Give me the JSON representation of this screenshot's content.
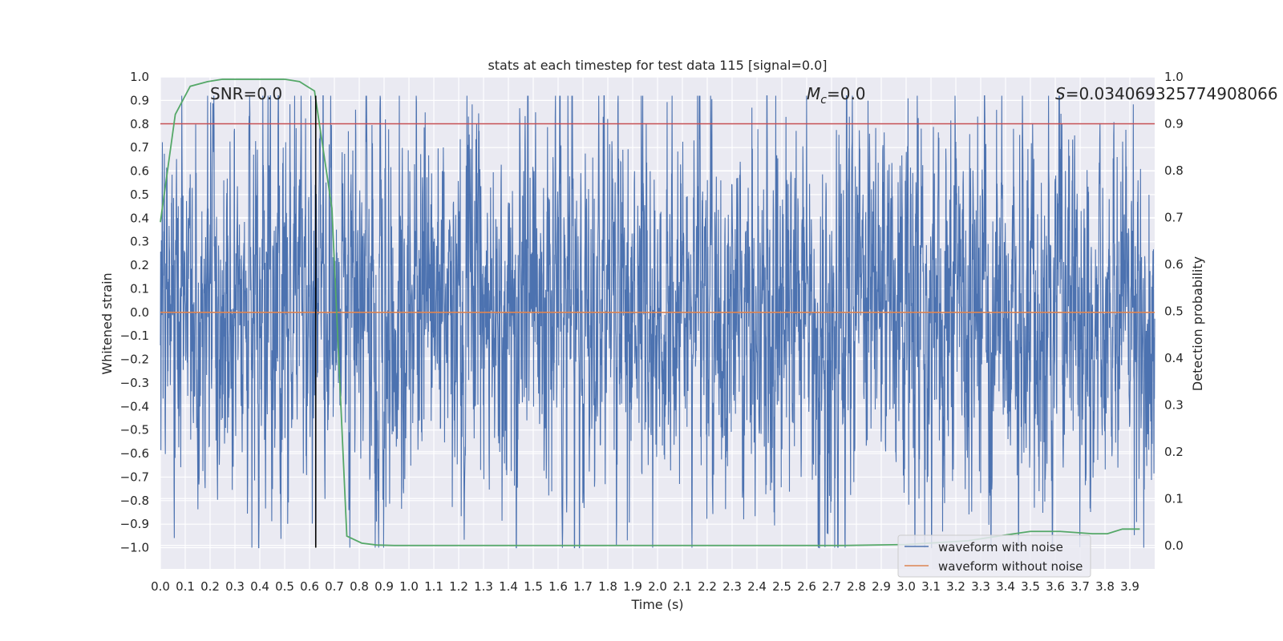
{
  "chart_data": {
    "type": "line",
    "title": "stats at each timestep for test data 115 [signal=0.0]",
    "xlabel": "Time (s)",
    "ylabel": "Whitened strain",
    "y2label": "Detection probability",
    "xlim": [
      0.0,
      4.0
    ],
    "ylim": [
      -1.09,
      1.0
    ],
    "y2lim": [
      -0.05,
      1.0
    ],
    "xticks": [
      "0.0",
      "0.1",
      "0.2",
      "0.3",
      "0.4",
      "0.5",
      "0.6",
      "0.7",
      "0.8",
      "0.9",
      "1.0",
      "1.1",
      "1.2",
      "1.3",
      "1.4",
      "1.5",
      "1.6",
      "1.7",
      "1.8",
      "1.9",
      "2.0",
      "2.1",
      "2.2",
      "2.3",
      "2.4",
      "2.5",
      "2.6",
      "2.7",
      "2.8",
      "2.9",
      "3.0",
      "3.1",
      "3.2",
      "3.3",
      "3.4",
      "3.5",
      "3.6",
      "3.7",
      "3.8",
      "3.9"
    ],
    "yticks": [
      "1.0",
      "0.9",
      "0.8",
      "0.7",
      "0.6",
      "0.5",
      "0.4",
      "0.3",
      "0.2",
      "0.1",
      "0.0",
      "−0.1",
      "−0.2",
      "−0.3",
      "−0.4",
      "−0.5",
      "−0.6",
      "−0.7",
      "−0.8",
      "−0.9",
      "−1.0"
    ],
    "y2ticks": [
      "1.0",
      "0.9",
      "0.8",
      "0.7",
      "0.6",
      "0.5",
      "0.4",
      "0.3",
      "0.2",
      "0.1",
      "0.0"
    ],
    "grid": true,
    "legend_position": "lower-right",
    "annotations": {
      "snr": "SNR=0.0",
      "mc_symbol": "M",
      "mc_sub": "c",
      "mc_value": "=0.0",
      "s_symbol": "S",
      "s_value": "=0.034069325774908066"
    },
    "threshold": {
      "value": 0.9,
      "axis": "right",
      "color": "#c44e52"
    },
    "peak_marker": {
      "x": 0.625,
      "ymin": -1.0,
      "ymax": 0.92,
      "color": "#000000"
    },
    "series": [
      {
        "name": "waveform with noise",
        "color": "#4c72b0",
        "axis": "left",
        "kind": "noise",
        "x_range": [
          0.0,
          4.0
        ],
        "approx_range": [
          -1.0,
          0.92
        ],
        "typical_amplitude": 0.35
      },
      {
        "name": "waveform without noise",
        "color": "#dd8452",
        "axis": "left",
        "x": [
          0.0,
          4.0
        ],
        "values": [
          0.0,
          0.0
        ]
      },
      {
        "name": "detection_probability",
        "color": "#55a868",
        "axis": "right",
        "x": [
          0.0,
          0.06,
          0.12,
          0.19,
          0.25,
          0.31,
          0.37,
          0.44,
          0.5,
          0.56,
          0.62,
          0.69,
          0.75,
          0.81,
          0.87,
          0.94,
          1.0,
          1.5,
          2.0,
          2.5,
          2.75,
          3.0,
          3.25,
          3.37,
          3.5,
          3.56,
          3.62,
          3.75,
          3.81,
          3.87,
          3.94
        ],
        "values": [
          0.69,
          0.92,
          0.98,
          0.99,
          0.995,
          0.995,
          0.995,
          0.995,
          0.995,
          0.99,
          0.97,
          0.72,
          0.02,
          0.005,
          0.001,
          0.0,
          0.0,
          0.0,
          0.0,
          0.0,
          0.0,
          0.002,
          0.01,
          0.02,
          0.03,
          0.03,
          0.03,
          0.025,
          0.025,
          0.035,
          0.035
        ]
      }
    ]
  }
}
